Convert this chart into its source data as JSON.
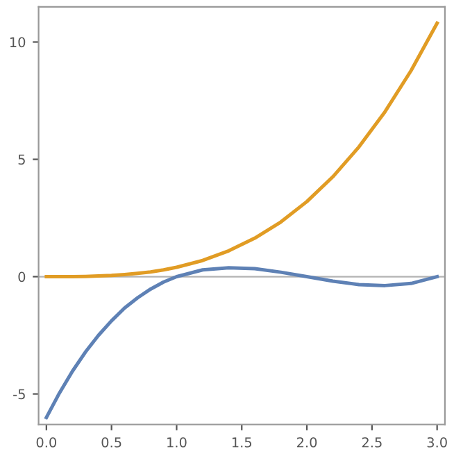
{
  "chart_data": {
    "type": "line",
    "x": [
      0,
      0.1,
      0.2,
      0.3,
      0.4,
      0.5,
      0.6,
      0.7,
      0.8,
      0.9,
      1.0,
      1.2,
      1.4,
      1.6,
      1.8,
      2.0,
      2.2,
      2.4,
      2.6,
      2.8,
      3.0
    ],
    "series": [
      {
        "color": "#5e81b5",
        "values": [
          -6,
          -4.96,
          -4.03,
          -3.21,
          -2.5,
          -1.88,
          -1.34,
          -0.9,
          -0.53,
          -0.23,
          0,
          0.29,
          0.38,
          0.34,
          0.19,
          0,
          -0.19,
          -0.34,
          -0.38,
          -0.29,
          0
        ]
      },
      {
        "color": "#e19c24",
        "values": [
          0,
          0,
          0,
          0.01,
          0.03,
          0.05,
          0.09,
          0.14,
          0.2,
          0.29,
          0.4,
          0.69,
          1.1,
          1.64,
          2.33,
          3.2,
          4.26,
          5.53,
          7.03,
          8.78,
          10.8
        ]
      }
    ],
    "xlim": [
      -0.06,
      3.06
    ],
    "ylim": [
      -6.3,
      11.5
    ],
    "xticks": [
      {
        "value": 0,
        "label": "0.0"
      },
      {
        "value": 0.5,
        "label": "0.5"
      },
      {
        "value": 1.0,
        "label": "1.0"
      },
      {
        "value": 1.5,
        "label": "1.5"
      },
      {
        "value": 2.0,
        "label": "2.0"
      },
      {
        "value": 2.5,
        "label": "2.5"
      },
      {
        "value": 3.0,
        "label": "3.0"
      }
    ],
    "yticks": [
      -5,
      0,
      5,
      10
    ],
    "ref_lines": [
      {
        "axis": "y",
        "value": 0,
        "color": "#b3b3b3"
      }
    ]
  }
}
